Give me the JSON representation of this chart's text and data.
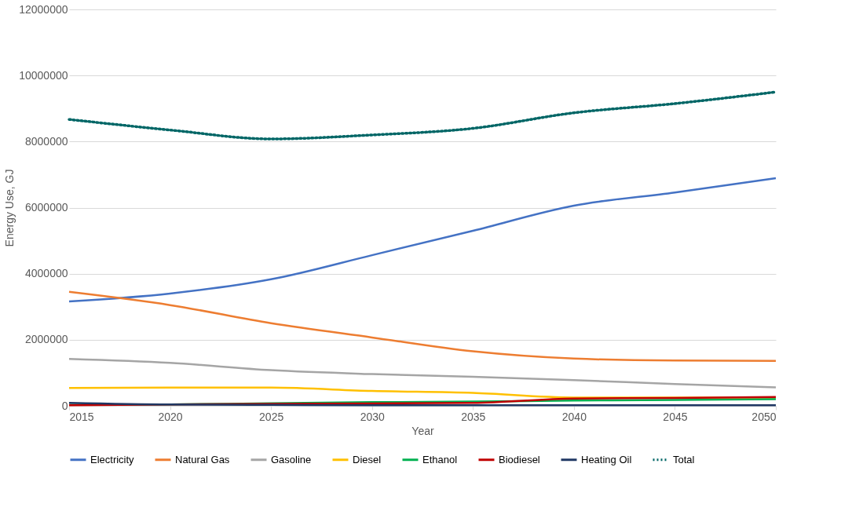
{
  "chart_data": {
    "type": "line",
    "xlabel": "Year",
    "ylabel": "Energy Use, GJ",
    "x": [
      2015,
      2020,
      2025,
      2030,
      2035,
      2040,
      2045,
      2050
    ],
    "series": [
      {
        "name": "Electricity",
        "color": "#4472c4",
        "values": [
          3160000,
          3400000,
          3830000,
          4560000,
          5300000,
          6060000,
          6460000,
          6890000
        ]
      },
      {
        "name": "Natural Gas",
        "color": "#ed7d31",
        "values": [
          3450000,
          3050000,
          2500000,
          2070000,
          1650000,
          1430000,
          1370000,
          1360000
        ]
      },
      {
        "name": "Gasoline",
        "color": "#a5a5a5",
        "values": [
          1420000,
          1300000,
          1080000,
          960000,
          880000,
          780000,
          660000,
          560000
        ]
      },
      {
        "name": "Diesel",
        "color": "#ffc000",
        "values": [
          540000,
          550000,
          550000,
          450000,
          390000,
          250000,
          250000,
          250000
        ]
      },
      {
        "name": "Ethanol",
        "color": "#00b050",
        "values": [
          30000,
          40000,
          80000,
          110000,
          130000,
          160000,
          180000,
          200000
        ]
      },
      {
        "name": "Biodiesel",
        "color": "#c00000",
        "values": [
          20000,
          40000,
          60000,
          70000,
          90000,
          220000,
          240000,
          270000
        ]
      },
      {
        "name": "Heating Oil",
        "color": "#203864",
        "values": [
          90000,
          40000,
          30000,
          20000,
          20000,
          20000,
          20000,
          20000
        ]
      },
      {
        "name": "Total",
        "color": "#006666",
        "line_style": "dotted",
        "values": [
          8670000,
          8350000,
          8080000,
          8200000,
          8400000,
          8870000,
          9150000,
          9500000
        ]
      }
    ],
    "xlim": [
      2015,
      2050
    ],
    "xticks": [
      2015,
      2020,
      2025,
      2030,
      2035,
      2040,
      2045,
      2050
    ],
    "ylim": [
      0,
      12000000
    ],
    "yticks": [
      0,
      2000000,
      4000000,
      6000000,
      8000000,
      10000000,
      12000000
    ],
    "grid": "y",
    "legend": "bottom",
    "line_style": "solid",
    "marker": "none"
  }
}
